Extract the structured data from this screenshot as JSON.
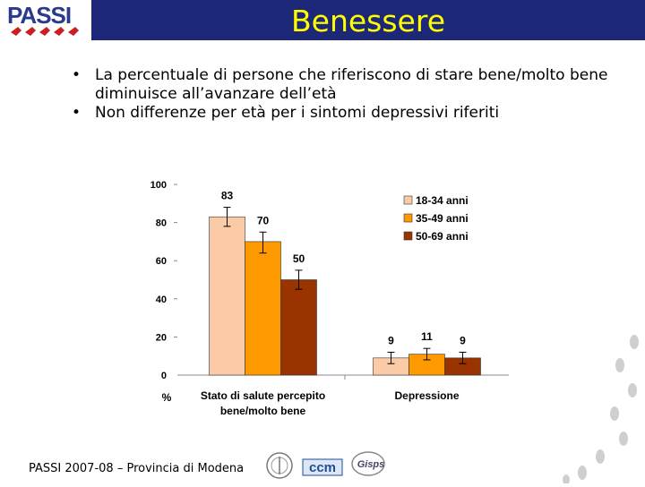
{
  "header": {
    "title": "Benessere",
    "logo_text": "PASSI"
  },
  "bullets": [
    "La percentuale di persone che riferiscono di stare bene/molto bene diminuisce all’avanzare dell’età",
    "Non differenze per età per i sintomi depressivi riferiti"
  ],
  "footer": {
    "source": "PASSI 2007-08 – Provincia di Modena",
    "logo_ccm": "ccm",
    "logo_gisps": "Gisps"
  },
  "colors": {
    "header_bg": "#1c2777",
    "title": "#ffff00",
    "series": [
      "#fbcba8",
      "#ff9900",
      "#993300"
    ]
  },
  "chart_data": {
    "type": "bar",
    "categories": [
      "Stato di salute percepito bene/molto bene",
      "Depressione"
    ],
    "category_lines": [
      [
        "Stato di salute percepito",
        "bene/molto bene"
      ],
      [
        "Depressione"
      ]
    ],
    "series": [
      {
        "name": "18-34 anni",
        "values": [
          83,
          9
        ]
      },
      {
        "name": "35-49 anni",
        "values": [
          70,
          11
        ]
      },
      {
        "name": "50-69 anni",
        "values": [
          50,
          9
        ]
      }
    ],
    "data_labels": [
      [
        "83",
        "70",
        "50"
      ],
      [
        "9",
        "11",
        "9"
      ]
    ],
    "error_bars": [
      [
        [
          78,
          88
        ],
        [
          64,
          75
        ],
        [
          45,
          55
        ]
      ],
      [
        [
          6,
          12
        ],
        [
          8,
          14
        ],
        [
          6,
          12
        ]
      ]
    ],
    "ylim": [
      0,
      100
    ],
    "yticks": [
      "0",
      "20",
      "40",
      "60",
      "80",
      "100"
    ],
    "ylabel": "%",
    "legend_position": "top-right"
  }
}
